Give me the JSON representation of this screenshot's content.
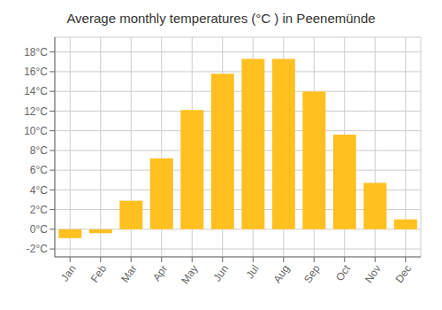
{
  "chart_data": {
    "type": "bar",
    "title": "Average monthly temperatures (°C ) in Peenemünde",
    "categories": [
      "Jan",
      "Feb",
      "Mar",
      "Apr",
      "May",
      "Jun",
      "Jul",
      "Aug",
      "Sep",
      "Oct",
      "Nov",
      "Dec"
    ],
    "values": [
      -0.9,
      -0.4,
      2.9,
      7.2,
      12.1,
      15.8,
      17.3,
      17.3,
      14.0,
      9.6,
      4.7,
      1.0
    ],
    "color": "#FFC020",
    "ylim": [
      -2.8,
      19.5
    ],
    "yticks": [
      {
        "value": -2,
        "label": "-2°C"
      },
      {
        "value": 0,
        "label": "0°C"
      },
      {
        "value": 2,
        "label": "2°C"
      },
      {
        "value": 4,
        "label": "4°C"
      },
      {
        "value": 6,
        "label": "6°C"
      },
      {
        "value": 8,
        "label": "8°C"
      },
      {
        "value": 10,
        "label": "10°C"
      },
      {
        "value": 12,
        "label": "12°C"
      },
      {
        "value": 14,
        "label": "14°C"
      },
      {
        "value": 16,
        "label": "16°C"
      },
      {
        "value": 18,
        "label": "18°C"
      }
    ],
    "grid": true
  }
}
